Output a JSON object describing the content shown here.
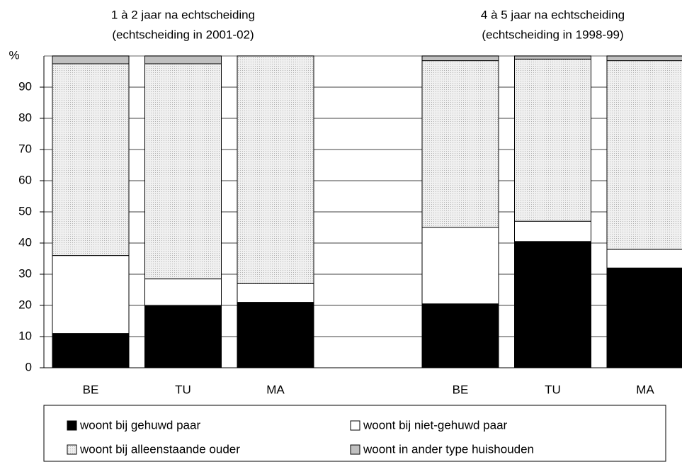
{
  "chart_data": {
    "type": "stacked_bar",
    "group_titles": [
      [
        "1 à 2 jaar na echtscheiding",
        "(echtscheiding in 2001-02)"
      ],
      [
        "4 à 5 jaar na echtscheiding",
        "(echtscheiding in 1998-99)"
      ]
    ],
    "y_label": "%",
    "categories": [
      "BE",
      "TU",
      "MA",
      null,
      "BE",
      "TU",
      "MA"
    ],
    "series": [
      {
        "name": "woont bij gehuwd paar",
        "color": "#000000",
        "values": [
          11,
          20,
          21,
          null,
          20.5,
          40.5,
          32
        ]
      },
      {
        "name": "woont bij niet-gehuwd paar",
        "color": "#ffffff",
        "values": [
          25,
          8.5,
          6,
          null,
          24.5,
          6.5,
          6
        ]
      },
      {
        "name": "woont bij alleenstaande ouder",
        "color": "#e6e6e6",
        "values": [
          61.5,
          69,
          73,
          null,
          53.5,
          52,
          60.5
        ]
      },
      {
        "name": "woont in ander type huishouden",
        "color": "#c0c0c0",
        "values": [
          2.5,
          2.5,
          0,
          null,
          1.5,
          1,
          1.5
        ]
      }
    ],
    "ylim": [
      0,
      100
    ],
    "yticks": [
      0,
      10,
      20,
      30,
      40,
      50,
      60,
      70,
      80,
      90
    ],
    "grid": true,
    "legend": "bottom"
  }
}
